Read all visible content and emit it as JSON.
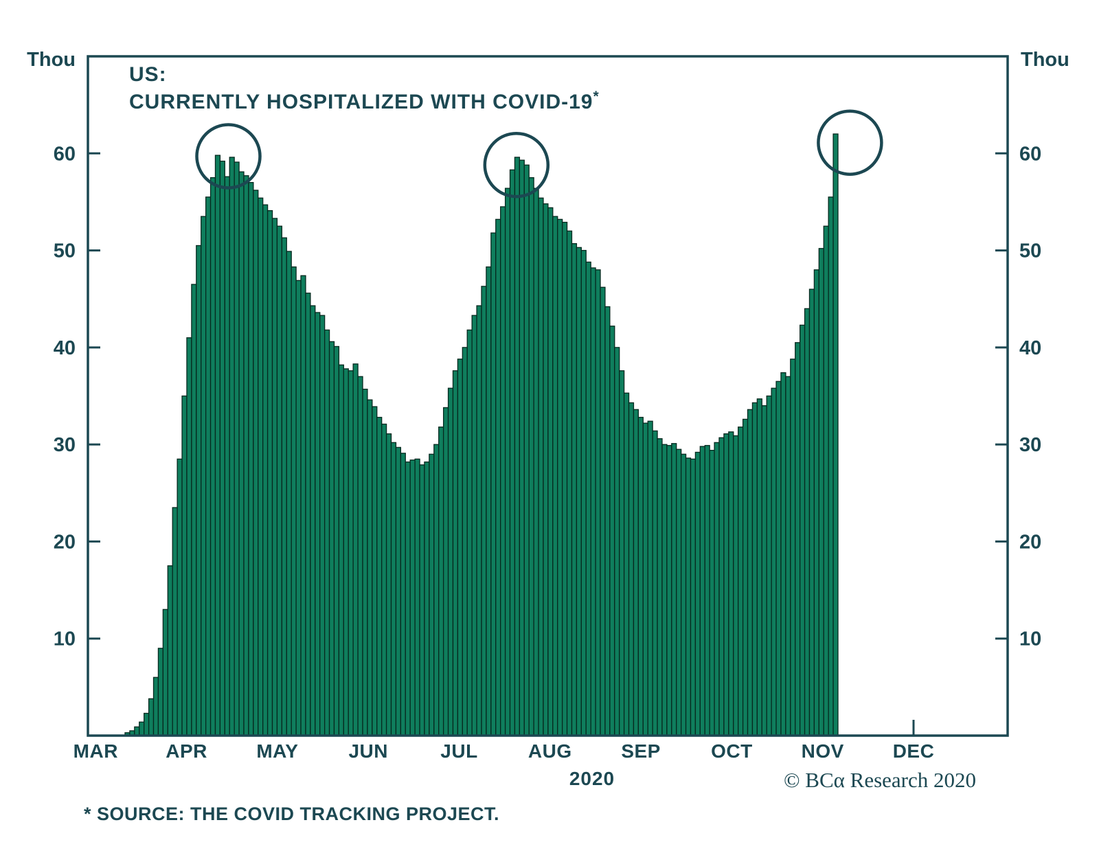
{
  "title": {
    "line1": "US:",
    "line2": "CURRENTLY HOSPITALIZED WITH COVID-19",
    "superscript": "*"
  },
  "y_axis": {
    "unit_label_left": "Thou",
    "unit_label_right": "Thou"
  },
  "footer": {
    "year_label": "2020",
    "source_note": "* SOURCE: THE COVID TRACKING PROJECT.",
    "credit": "© BCα Research 2020"
  },
  "colors": {
    "background": "#ffffff",
    "bar_fill": "#0f7e5d",
    "bar_outline": "#07291f",
    "axis_and_text": "#1c4852",
    "circle_stroke": "#1c4852"
  },
  "chart_data": {
    "type": "bar",
    "title": "US: CURRENTLY HOSPITALIZED WITH COVID-19*",
    "ylabel": "Thou",
    "unit": "thousands of people",
    "ylim": [
      0,
      70
    ],
    "y_ticks": [
      10,
      20,
      30,
      40,
      50,
      60
    ],
    "grid": false,
    "x_tick_labels": [
      "MAR",
      "APR",
      "MAY",
      "JUN",
      "JUL",
      "AUG",
      "SEP",
      "OCT",
      "NOV",
      "DEC"
    ],
    "x_domain_months": [
      0.35,
      8.14
    ],
    "values_thousands": [
      0.3,
      0.5,
      0.9,
      1.4,
      2.3,
      3.8,
      6.0,
      9.0,
      13.0,
      17.5,
      23.5,
      28.5,
      35.0,
      41.0,
      46.5,
      50.5,
      53.5,
      55.5,
      57.5,
      59.8,
      59.2,
      57.6,
      59.6,
      59.1,
      58.1,
      57.7,
      57.0,
      56.2,
      55.4,
      54.7,
      54.1,
      53.3,
      52.5,
      51.3,
      49.9,
      48.3,
      46.9,
      47.4,
      45.6,
      44.3,
      43.6,
      43.3,
      41.8,
      40.6,
      40.1,
      38.2,
      37.8,
      37.6,
      38.3,
      37.0,
      35.7,
      34.6,
      33.9,
      32.8,
      32.1,
      31.1,
      30.2,
      29.7,
      29.1,
      28.2,
      28.4,
      28.5,
      27.9,
      28.2,
      29.0,
      30.0,
      31.8,
      33.8,
      35.8,
      37.6,
      38.8,
      40.0,
      41.8,
      43.3,
      44.3,
      46.3,
      48.3,
      51.8,
      53.2,
      54.5,
      56.4,
      58.3,
      59.6,
      59.3,
      58.8,
      57.5,
      56.4,
      55.4,
      54.8,
      54.4,
      53.5,
      53.2,
      52.9,
      52.0,
      50.7,
      50.3,
      50.0,
      48.8,
      48.2,
      48.0,
      46.2,
      44.2,
      42.2,
      40.0,
      37.6,
      35.3,
      34.3,
      33.6,
      32.8,
      32.2,
      32.4,
      31.4,
      30.6,
      30.0,
      29.9,
      30.1,
      29.5,
      29.0,
      28.6,
      28.5,
      29.2,
      29.8,
      29.9,
      29.4,
      30.2,
      30.7,
      31.1,
      31.3,
      30.9,
      31.8,
      32.6,
      33.6,
      34.3,
      34.7,
      34.0,
      35.0,
      35.8,
      36.5,
      37.4,
      37.0,
      38.8,
      40.5,
      42.3,
      44.0,
      46.0,
      48.0,
      50.2,
      52.5,
      55.5,
      62.0
    ],
    "circled_peaks": [
      {
        "x_month": 1.46,
        "value_thousands": 59.7
      },
      {
        "x_month": 4.63,
        "value_thousands": 58.8
      },
      {
        "x_month": 8.3,
        "value_thousands": 61.1
      }
    ],
    "legend": null,
    "annotations_note": "three dark circles highlight the April, late-July and early-November hospitalization peaks; only DEC has a visible bottom tick"
  }
}
